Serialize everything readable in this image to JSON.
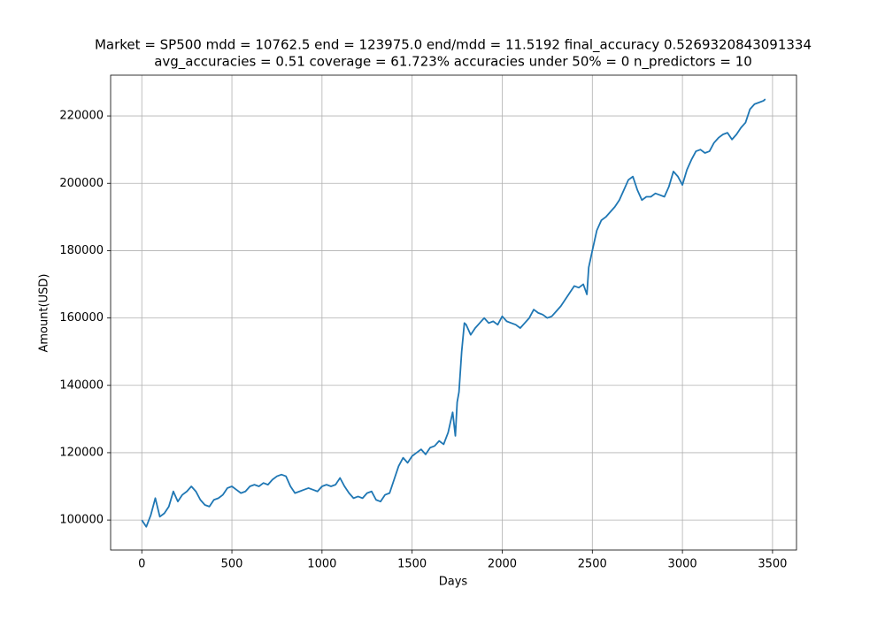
{
  "chart_data": {
    "type": "line",
    "title": [
      "Market = SP500 mdd = 10762.5 end = 123975.0 end/mdd = 11.5192 final_accuracy 0.5269320843091334",
      "avg_accuracies = 0.51 coverage = 61.723%  accuracies under 50% = 0 n_predictors = 10"
    ],
    "x_label": "Days",
    "y_label": "Amount(USD)",
    "xlim": [
      -173,
      3633
    ],
    "ylim": [
      91100,
      232100
    ],
    "xticks": [
      0,
      500,
      1000,
      1500,
      2000,
      2500,
      3000,
      3500
    ],
    "yticks": [
      100000,
      120000,
      140000,
      160000,
      180000,
      200000,
      220000
    ],
    "grid": true,
    "x": [
      0,
      25,
      50,
      75,
      100,
      125,
      150,
      175,
      200,
      225,
      250,
      275,
      300,
      325,
      350,
      375,
      400,
      425,
      450,
      475,
      500,
      525,
      550,
      575,
      600,
      625,
      650,
      675,
      700,
      725,
      750,
      775,
      800,
      825,
      850,
      875,
      900,
      925,
      950,
      975,
      1000,
      1025,
      1050,
      1075,
      1100,
      1125,
      1150,
      1175,
      1200,
      1225,
      1250,
      1275,
      1300,
      1325,
      1350,
      1375,
      1400,
      1425,
      1450,
      1475,
      1500,
      1525,
      1550,
      1575,
      1600,
      1625,
      1650,
      1675,
      1700,
      1725,
      1740,
      1750,
      1760,
      1775,
      1790,
      1800,
      1825,
      1850,
      1875,
      1900,
      1925,
      1950,
      1975,
      2000,
      2025,
      2050,
      2075,
      2100,
      2125,
      2150,
      2175,
      2200,
      2225,
      2250,
      2275,
      2300,
      2325,
      2350,
      2375,
      2400,
      2425,
      2450,
      2470,
      2480,
      2500,
      2525,
      2550,
      2575,
      2600,
      2625,
      2650,
      2675,
      2700,
      2725,
      2750,
      2775,
      2800,
      2825,
      2850,
      2875,
      2900,
      2925,
      2950,
      2975,
      3000,
      3025,
      3050,
      3075,
      3100,
      3125,
      3150,
      3175,
      3200,
      3225,
      3250,
      3275,
      3300,
      3325,
      3350,
      3375,
      3400,
      3425,
      3450,
      3460
    ],
    "series": [
      {
        "color": "#1f77b4",
        "values": [
          100000,
          98000,
          101500,
          106500,
          101000,
          102000,
          104000,
          108500,
          105500,
          107500,
          108500,
          110000,
          108500,
          106000,
          104500,
          104000,
          106000,
          106500,
          107500,
          109500,
          110000,
          109000,
          108000,
          108500,
          110000,
          110500,
          110000,
          111000,
          110500,
          112000,
          113000,
          113500,
          113000,
          110000,
          108000,
          108500,
          109000,
          109500,
          109000,
          108500,
          110000,
          110500,
          110000,
          110500,
          112500,
          110000,
          108000,
          106500,
          107000,
          106500,
          108000,
          108500,
          106000,
          105500,
          107500,
          108000,
          112000,
          116000,
          118500,
          117000,
          119000,
          120000,
          121000,
          119500,
          121500,
          122000,
          123500,
          122500,
          126000,
          132000,
          125000,
          135000,
          138000,
          150000,
          158500,
          158000,
          155000,
          157000,
          158500,
          160000,
          158500,
          159000,
          158000,
          160500,
          159000,
          158500,
          158000,
          157000,
          158500,
          160000,
          162500,
          161500,
          161000,
          160000,
          160500,
          162000,
          163500,
          165500,
          167500,
          169500,
          169000,
          170000,
          167000,
          175000,
          180000,
          186000,
          189000,
          190000,
          191500,
          193000,
          195000,
          198000,
          201000,
          202000,
          198000,
          195000,
          196000,
          196000,
          197000,
          196500,
          196000,
          199000,
          203500,
          202000,
          199500,
          204000,
          207000,
          209500,
          210000,
          209000,
          209500,
          212000,
          213500,
          214500,
          215000,
          213000,
          214500,
          216500,
          218000,
          222000,
          223500,
          224000,
          224500,
          225000
        ]
      }
    ]
  }
}
